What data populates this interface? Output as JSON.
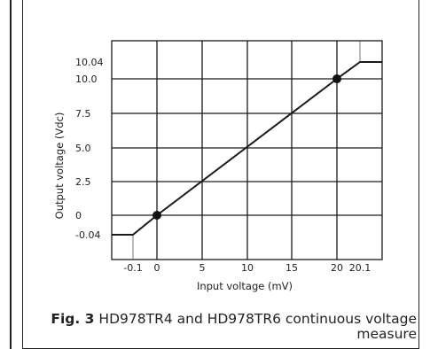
{
  "caption": {
    "label": "Fig. 3",
    "text": "HD978TR4 and HD978TR6 continuous voltage measure"
  },
  "chart_data": {
    "type": "line",
    "title": "",
    "xlabel": "Input voltage (mV)",
    "ylabel": "Output voltage (Vdc)",
    "x_ticks": [
      {
        "value": -0.1,
        "label": "-0.1"
      },
      {
        "value": 0,
        "label": "0"
      },
      {
        "value": 5,
        "label": "5"
      },
      {
        "value": 10,
        "label": "10"
      },
      {
        "value": 15,
        "label": "15"
      },
      {
        "value": 20,
        "label": "20"
      },
      {
        "value": 20.1,
        "label": "20.1"
      }
    ],
    "y_ticks": [
      {
        "value": -0.04,
        "label": "-0.04"
      },
      {
        "value": 0,
        "label": "0"
      },
      {
        "value": 2.5,
        "label": "2.5"
      },
      {
        "value": 5.0,
        "label": "5.0"
      },
      {
        "value": 7.5,
        "label": "7.5"
      },
      {
        "value": 10.0,
        "label": "10.0"
      },
      {
        "value": 10.04,
        "label": "10.04"
      }
    ],
    "series": [
      {
        "values": [
          {
            "x": -1.3,
            "y": -0.04
          },
          {
            "x": -0.1,
            "y": -0.04
          },
          {
            "x": 0,
            "y": 0
          },
          {
            "x": 20,
            "y": 10.0
          },
          {
            "x": 20.1,
            "y": 10.04
          },
          {
            "x": 21.4,
            "y": 10.04
          }
        ]
      }
    ],
    "markers": [
      {
        "x": 0,
        "y": 0
      },
      {
        "x": 20,
        "y": 10.0
      }
    ],
    "grid": true,
    "line_color": "#1a1a1a"
  }
}
